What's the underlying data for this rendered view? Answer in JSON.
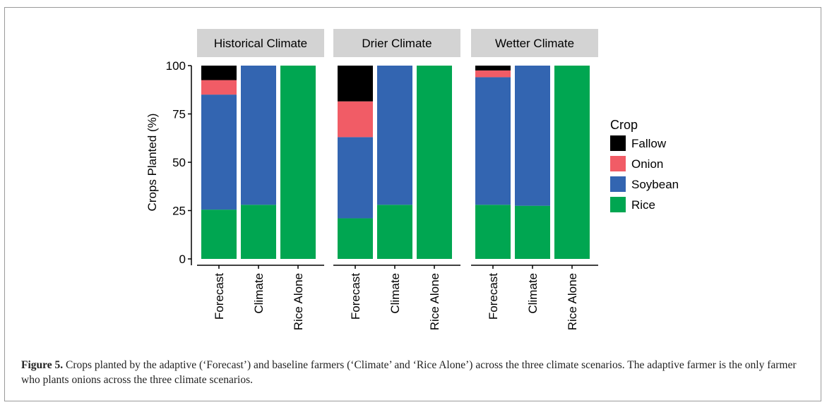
{
  "chart_data": {
    "type": "bar",
    "stacked": true,
    "facets": [
      "Historical Climate",
      "Drier Climate",
      "Wetter Climate"
    ],
    "categories": [
      "Forecast",
      "Climate",
      "Rice Alone"
    ],
    "ylabel": "Crops Planted (%)",
    "ylim": [
      0,
      100
    ],
    "yticks": [
      "0",
      "25",
      "50",
      "75",
      "100"
    ],
    "legend": {
      "title": "Crop",
      "position": "right",
      "items": [
        "Fallow",
        "Onion",
        "Soybean",
        "Rice"
      ]
    },
    "colors": {
      "Fallow": "#000000",
      "Onion": "#f15c66",
      "Soybean": "#3365b1",
      "Rice": "#00a651"
    },
    "stack_order": [
      "Rice",
      "Soybean",
      "Onion",
      "Fallow"
    ],
    "panels": [
      {
        "facet": "Historical Climate",
        "bars": [
          {
            "category": "Forecast",
            "Rice": 25.5,
            "Soybean": 59.5,
            "Onion": 7.5,
            "Fallow": 7.5
          },
          {
            "category": "Climate",
            "Rice": 28,
            "Soybean": 72,
            "Onion": 0,
            "Fallow": 0
          },
          {
            "category": "Rice Alone",
            "Rice": 100,
            "Soybean": 0,
            "Onion": 0,
            "Fallow": 0
          }
        ]
      },
      {
        "facet": "Drier Climate",
        "bars": [
          {
            "category": "Forecast",
            "Rice": 21,
            "Soybean": 42,
            "Onion": 18.5,
            "Fallow": 18.5
          },
          {
            "category": "Climate",
            "Rice": 28,
            "Soybean": 72,
            "Onion": 0,
            "Fallow": 0
          },
          {
            "category": "Rice Alone",
            "Rice": 100,
            "Soybean": 0,
            "Onion": 0,
            "Fallow": 0
          }
        ]
      },
      {
        "facet": "Wetter Climate",
        "bars": [
          {
            "category": "Forecast",
            "Rice": 28,
            "Soybean": 66,
            "Onion": 3.5,
            "Fallow": 2.5
          },
          {
            "category": "Climate",
            "Rice": 27.5,
            "Soybean": 72.5,
            "Onion": 0,
            "Fallow": 0
          },
          {
            "category": "Rice Alone",
            "Rice": 100,
            "Soybean": 0,
            "Onion": 0,
            "Fallow": 0
          }
        ]
      }
    ]
  },
  "caption": {
    "label": "Figure 5.",
    "text": "Crops planted by the adaptive (‘Forecast’) and baseline farmers (‘Climate’ and ‘Rice Alone’) across the three climate scenarios. The adaptive farmer is the only farmer who plants onions across the three climate scenarios."
  }
}
